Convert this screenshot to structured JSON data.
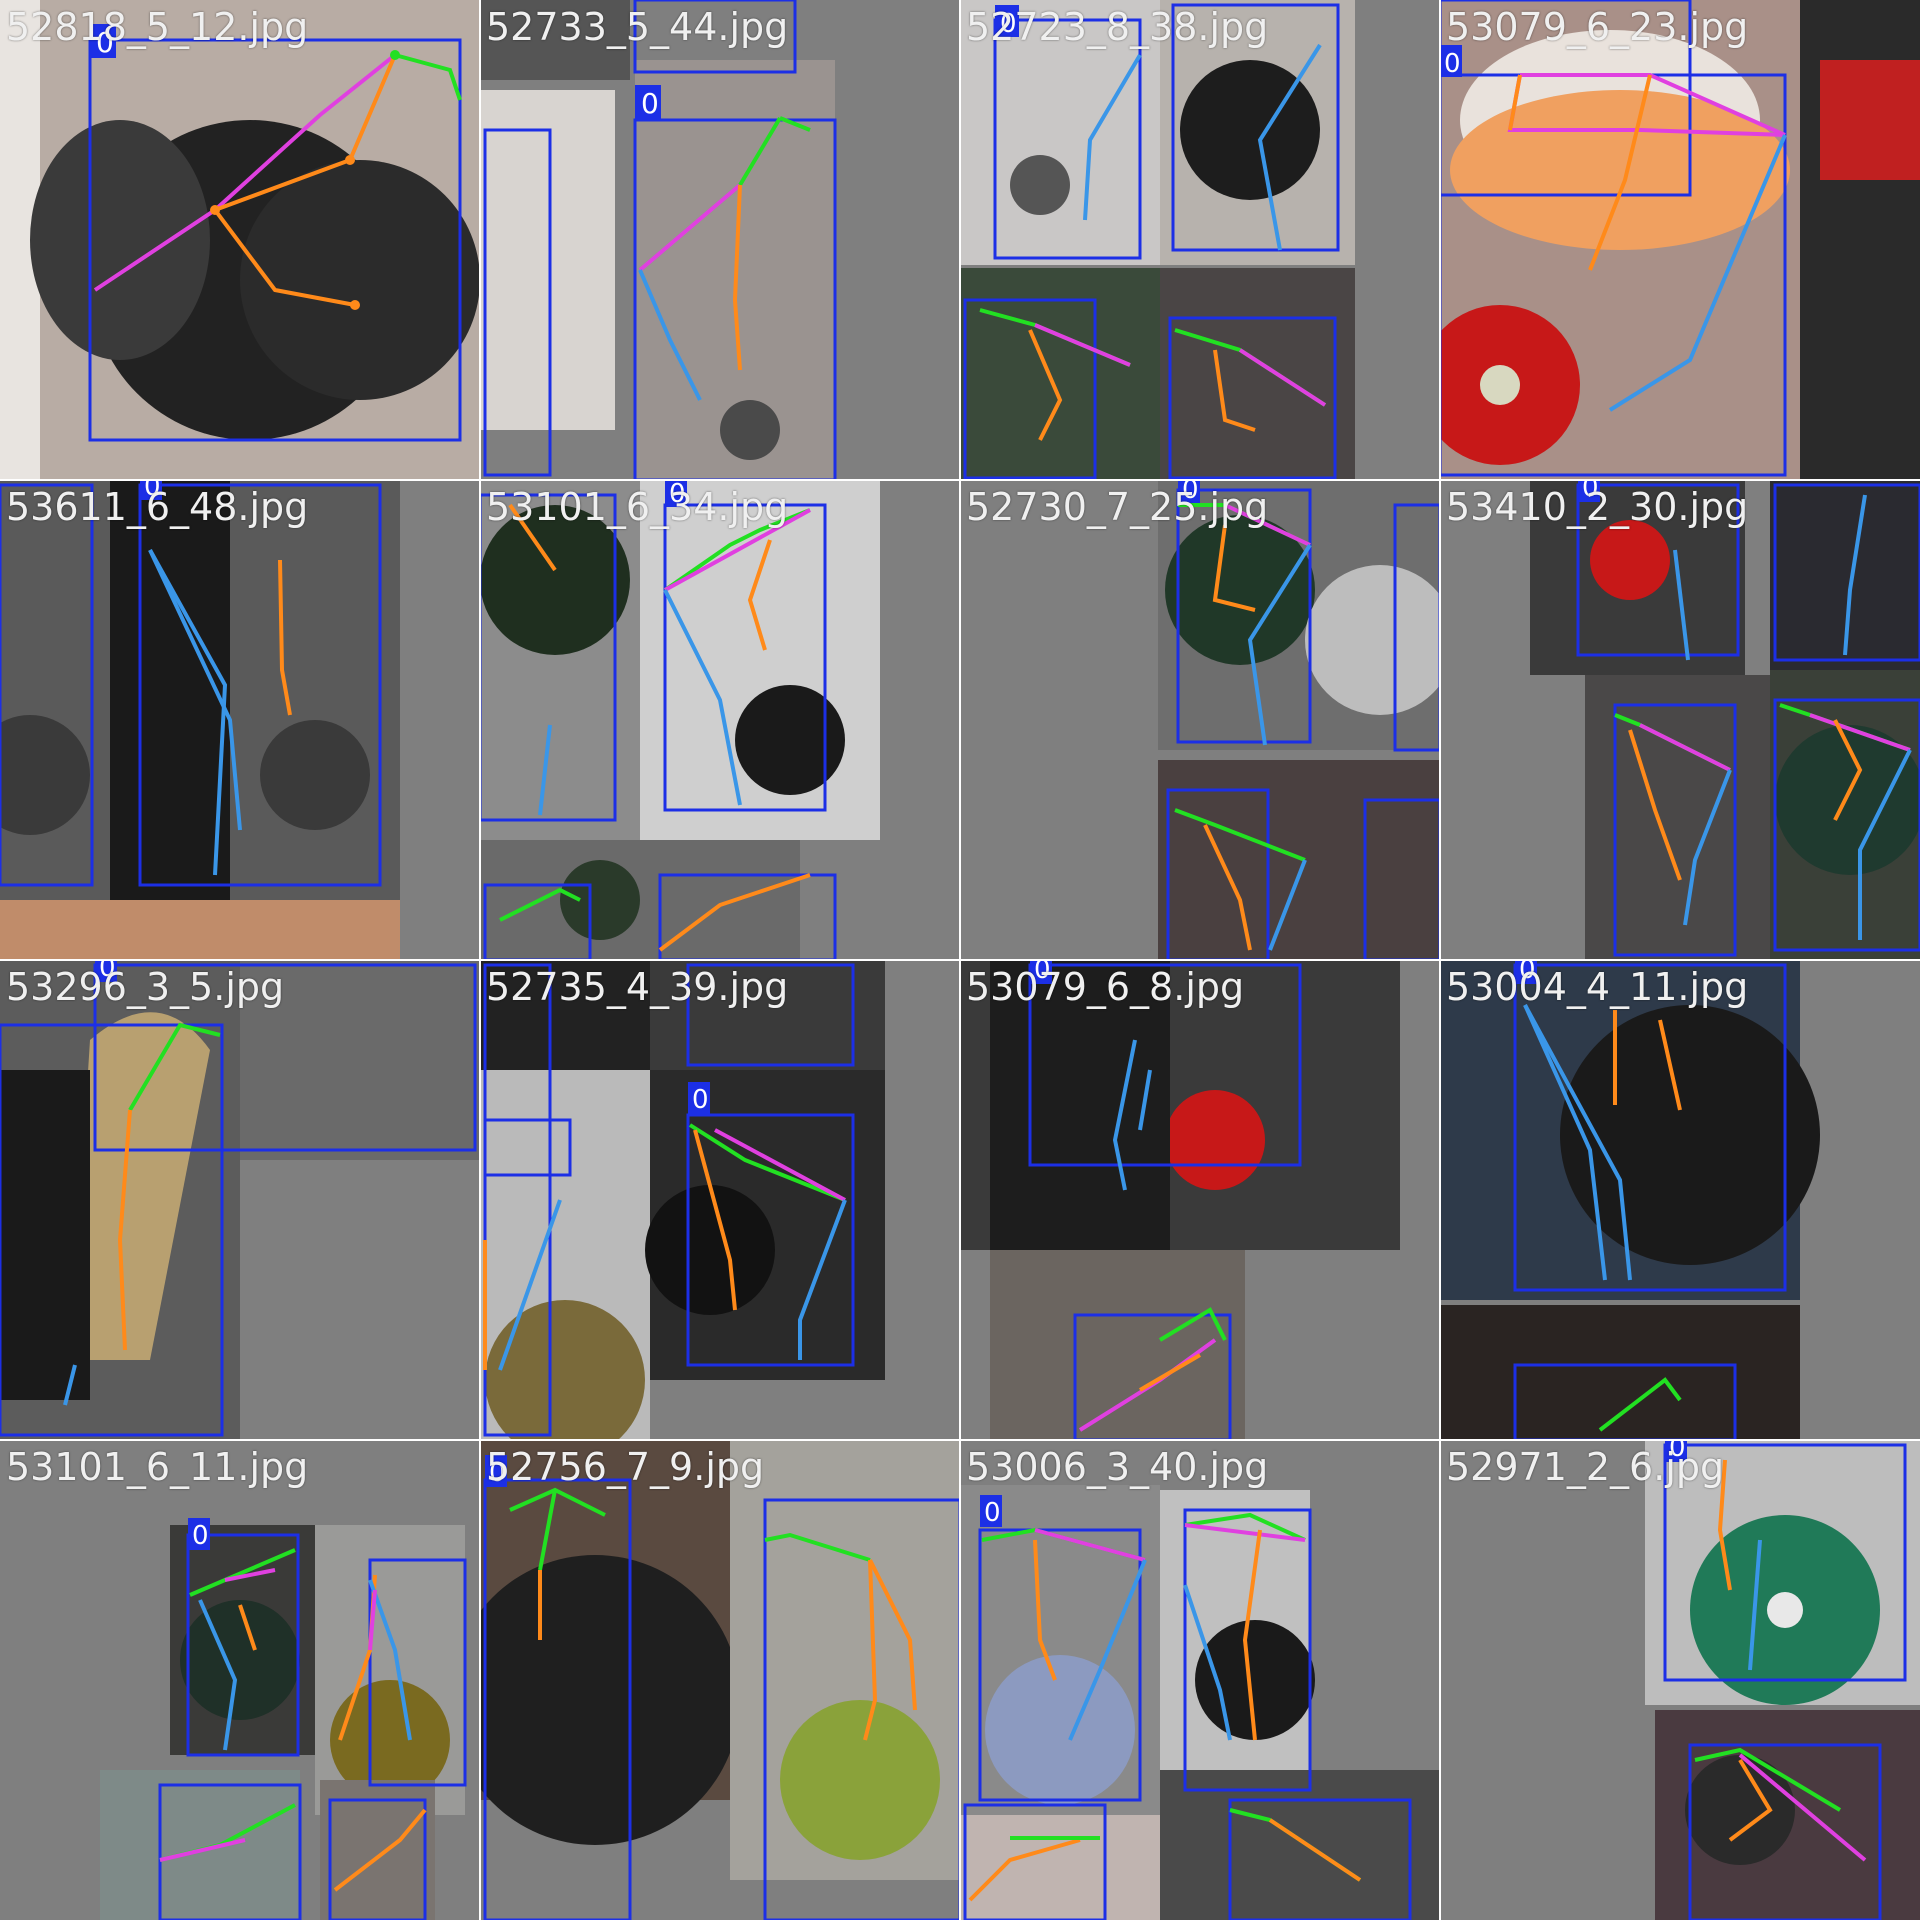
{
  "colors": {
    "box": "#1c2fe6",
    "box_tag_text": "#ffffff",
    "limb_head": "#22e022",
    "limb_torso": "#e040e0",
    "limb_arm": "#ff8a1a",
    "limb_leg": "#3a96e8",
    "filename_text": "#f0f0f0"
  },
  "class_label": "0",
  "tiles": [
    {
      "filename": "52818_5_12.jpg"
    },
    {
      "filename": "52733_5_44.jpg"
    },
    {
      "filename": "52723_8_38.jpg"
    },
    {
      "filename": "53079_6_23.jpg"
    },
    {
      "filename": "53611_6_48.jpg"
    },
    {
      "filename": "53101_6_34.jpg"
    },
    {
      "filename": "52730_7_25.jpg"
    },
    {
      "filename": "53410_2_30.jpg"
    },
    {
      "filename": "53296_3_5.jpg"
    },
    {
      "filename": "52735_4_39.jpg"
    },
    {
      "filename": "53079_6_8.jpg"
    },
    {
      "filename": "53004_4_11.jpg"
    },
    {
      "filename": "53101_6_11.jpg"
    },
    {
      "filename": "52756_7_9.jpg"
    },
    {
      "filename": "53006_3_40.jpg"
    },
    {
      "filename": "52971_2_6.jpg"
    }
  ]
}
